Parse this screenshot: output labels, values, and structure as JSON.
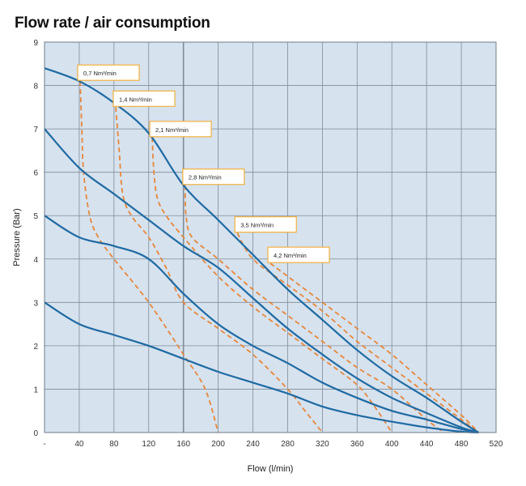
{
  "chart_data": {
    "type": "line",
    "title": "Flow rate / air consumption",
    "xlabel": "Flow (l/min)",
    "ylabel": "Pressure (Bar)",
    "xlim": [
      0,
      520
    ],
    "ylim": [
      0,
      9
    ],
    "x_ticks": [
      "-",
      "40",
      "80",
      "120",
      "160",
      "200",
      "240",
      "280",
      "320",
      "360",
      "400",
      "440",
      "480",
      "520"
    ],
    "y_ticks": [
      "0",
      "1",
      "2",
      "3",
      "4",
      "5",
      "6",
      "7",
      "8",
      "9"
    ],
    "colors": {
      "background": "#d6e2ee",
      "grid": "#7f8c99",
      "pressure_curve": "#1e6aa3",
      "air_curve": "#e8873a",
      "label_border": "#f2b13c"
    },
    "series": [
      {
        "name": "Pressure 8.4 bar",
        "points": [
          [
            0,
            8.4
          ],
          [
            40,
            8.1
          ],
          [
            80,
            7.6
          ],
          [
            120,
            6.9
          ],
          [
            160,
            5.7
          ],
          [
            200,
            4.9
          ],
          [
            240,
            4.1
          ],
          [
            280,
            3.3
          ],
          [
            320,
            2.6
          ],
          [
            360,
            1.9
          ],
          [
            400,
            1.3
          ],
          [
            440,
            0.8
          ],
          [
            480,
            0.25
          ],
          [
            500,
            0
          ]
        ]
      },
      {
        "name": "Pressure 7 bar",
        "points": [
          [
            0,
            7.0
          ],
          [
            40,
            6.1
          ],
          [
            80,
            5.5
          ],
          [
            120,
            4.9
          ],
          [
            160,
            4.3
          ],
          [
            200,
            3.8
          ],
          [
            240,
            3.1
          ],
          [
            280,
            2.4
          ],
          [
            320,
            1.8
          ],
          [
            360,
            1.25
          ],
          [
            400,
            0.8
          ],
          [
            440,
            0.45
          ],
          [
            480,
            0.12
          ],
          [
            500,
            0
          ]
        ]
      },
      {
        "name": "Pressure 5 bar",
        "points": [
          [
            0,
            5.0
          ],
          [
            40,
            4.5
          ],
          [
            80,
            4.3
          ],
          [
            120,
            4.0
          ],
          [
            160,
            3.2
          ],
          [
            200,
            2.5
          ],
          [
            240,
            2.0
          ],
          [
            280,
            1.6
          ],
          [
            320,
            1.15
          ],
          [
            360,
            0.8
          ],
          [
            400,
            0.5
          ],
          [
            440,
            0.3
          ],
          [
            480,
            0.08
          ],
          [
            500,
            0
          ]
        ]
      },
      {
        "name": "Pressure 3 bar",
        "points": [
          [
            0,
            3.0
          ],
          [
            40,
            2.5
          ],
          [
            80,
            2.25
          ],
          [
            120,
            2.0
          ],
          [
            160,
            1.7
          ],
          [
            200,
            1.4
          ],
          [
            240,
            1.15
          ],
          [
            280,
            0.9
          ],
          [
            320,
            0.6
          ],
          [
            360,
            0.4
          ],
          [
            400,
            0.25
          ],
          [
            440,
            0.12
          ],
          [
            480,
            0.02
          ],
          [
            500,
            0
          ]
        ]
      },
      {
        "name": "0,7 Nm³/min",
        "points": [
          [
            41,
            8.1
          ],
          [
            43,
            7.0
          ],
          [
            45,
            6.0
          ],
          [
            52,
            5.0
          ],
          [
            62,
            4.5
          ],
          [
            80,
            4.0
          ],
          [
            120,
            3.0
          ],
          [
            160,
            1.8
          ],
          [
            185,
            1.0
          ],
          [
            200,
            0
          ]
        ]
      },
      {
        "name": "1,4 Nm³/min",
        "points": [
          [
            82,
            7.5
          ],
          [
            86,
            6.5
          ],
          [
            90,
            5.5
          ],
          [
            100,
            5.0
          ],
          [
            120,
            4.5
          ],
          [
            140,
            3.8
          ],
          [
            160,
            3.0
          ],
          [
            200,
            2.4
          ],
          [
            240,
            1.8
          ],
          [
            280,
            1.0
          ],
          [
            300,
            0.5
          ],
          [
            320,
            0
          ]
        ]
      },
      {
        "name": "2,1 Nm³/min",
        "points": [
          [
            124,
            6.8
          ],
          [
            126,
            6.0
          ],
          [
            130,
            5.4
          ],
          [
            140,
            5.0
          ],
          [
            160,
            4.5
          ],
          [
            200,
            3.6
          ],
          [
            240,
            2.9
          ],
          [
            280,
            2.3
          ],
          [
            320,
            1.7
          ],
          [
            360,
            1.1
          ],
          [
            380,
            0.6
          ],
          [
            400,
            0
          ]
        ]
      },
      {
        "name": "2,8 Nm³/min",
        "points": [
          [
            162,
            5.7
          ],
          [
            163,
            5.0
          ],
          [
            170,
            4.5
          ],
          [
            200,
            4.0
          ],
          [
            240,
            3.3
          ],
          [
            280,
            2.7
          ],
          [
            320,
            2.1
          ],
          [
            360,
            1.5
          ],
          [
            400,
            1.0
          ],
          [
            440,
            0.3
          ],
          [
            460,
            0
          ]
        ]
      },
      {
        "name": "3,5 Nm³/min",
        "points": [
          [
            222,
            4.6
          ],
          [
            240,
            4.0
          ],
          [
            280,
            3.4
          ],
          [
            320,
            2.8
          ],
          [
            360,
            2.1
          ],
          [
            400,
            1.5
          ],
          [
            440,
            0.9
          ],
          [
            480,
            0.3
          ],
          [
            500,
            0
          ]
        ]
      },
      {
        "name": "4,2 Nm³/min",
        "points": [
          [
            260,
            3.9
          ],
          [
            280,
            3.6
          ],
          [
            320,
            3.0
          ],
          [
            360,
            2.4
          ],
          [
            400,
            1.8
          ],
          [
            440,
            1.1
          ],
          [
            480,
            0.4
          ],
          [
            500,
            0
          ]
        ]
      }
    ],
    "annotations": [
      "0,7 Nm³/min",
      "1,4 Nm³/min",
      "2,1 Nm³/min",
      "2,8 Nm³/min",
      "3,5 Nm³/min",
      "4,2 Nm³/min"
    ]
  }
}
